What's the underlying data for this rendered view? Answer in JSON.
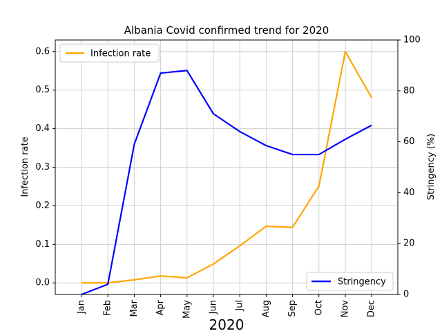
{
  "chart_data": {
    "type": "line",
    "title": "Albania Covid confirmed trend for 2020",
    "xlabel": "2020",
    "categories": [
      "Jan",
      "Feb",
      "Mar",
      "Apr",
      "May",
      "Jun",
      "Jul",
      "Aug",
      "Sep",
      "Oct",
      "Nov",
      "Dec"
    ],
    "grid": true,
    "axes": {
      "left": {
        "label": "Infection rate",
        "ylim": [
          -0.03,
          0.63
        ],
        "ticks": [
          "0.0",
          "0.1",
          "0.2",
          "0.3",
          "0.4",
          "0.5",
          "0.6"
        ]
      },
      "right": {
        "label": "Stringency (%)",
        "ylim": [
          0,
          100
        ],
        "ticks": [
          "0",
          "20",
          "40",
          "60",
          "80",
          "100"
        ]
      }
    },
    "series": [
      {
        "name": "Infection rate",
        "axis": "left",
        "color": "#ffa500",
        "values": [
          0.0,
          0.0,
          0.008,
          0.018,
          0.013,
          0.049,
          0.096,
          0.147,
          0.144,
          0.251,
          0.6,
          0.48
        ],
        "legend_position": "top-left"
      },
      {
        "name": "Stringency",
        "axis": "right",
        "color": "#0000ff",
        "values": [
          0,
          4,
          59,
          87,
          88,
          71,
          64,
          58.5,
          55,
          55,
          61,
          66.5
        ],
        "legend_position": "bottom-right"
      }
    ]
  }
}
